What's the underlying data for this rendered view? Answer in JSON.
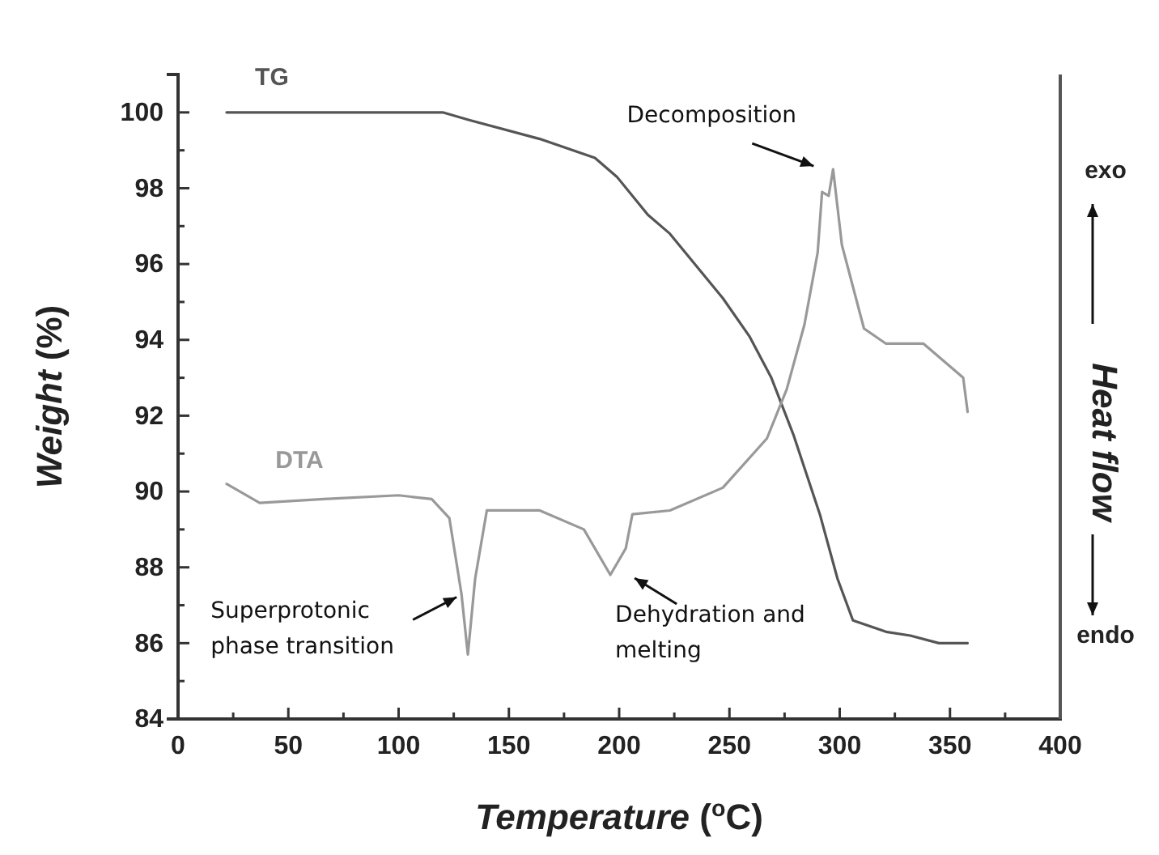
{
  "chart_data": {
    "type": "line",
    "xlabel": "Temperature ($^{o}$C)",
    "ylabel": "Weight (%)",
    "y2label": "Heat flow",
    "xlim": [
      0,
      400
    ],
    "xticks": [
      0,
      {
        "value": 25,
        "label": null
      },
      50,
      {
        "value": 75,
        "label": null
      },
      100,
      {
        "value": 125,
        "label": null
      },
      150,
      {
        "value": 175,
        "label": null
      },
      200,
      {
        "value": 225,
        "label": null
      },
      250,
      {
        "value": 275,
        "label": null
      },
      300,
      {
        "value": 325,
        "label": null
      },
      350,
      {
        "value": 375,
        "label": null
      },
      400
    ],
    "ylim": [
      84,
      101
    ],
    "yticks": [
      84,
      {
        "value": 85,
        "label": null
      },
      86,
      {
        "value": 87,
        "label": null
      },
      88,
      {
        "value": 89,
        "label": null
      },
      90,
      {
        "value": 91,
        "label": null
      },
      92,
      {
        "value": 93,
        "label": null
      },
      94,
      {
        "value": 95,
        "label": null
      },
      96,
      {
        "value": 97,
        "label": null
      },
      98,
      {
        "value": 99,
        "label": null
      },
      100
    ],
    "grid": false,
    "marker": "none",
    "line_style": "solid",
    "series": [
      {
        "name": "TG",
        "color": "#555555",
        "x": [
          22,
          60,
          100,
          120,
          132,
          164,
          189,
          199,
          213,
          223,
          247,
          259,
          269,
          279,
          291,
          299,
          306,
          321,
          332,
          345,
          358
        ],
        "values": [
          100,
          100,
          100,
          100,
          99.8,
          99.3,
          98.8,
          98.3,
          97.3,
          96.8,
          95.1,
          94.1,
          93.0,
          91.5,
          89.4,
          87.7,
          86.6,
          86.3,
          86.2,
          86.0,
          86.0
        ]
      },
      {
        "name": "DTA",
        "color": "#999999",
        "x": [
          22,
          37,
          66,
          100,
          115,
          123,
          128.5,
          131.4,
          134.7,
          140,
          164,
          184,
          196,
          203,
          206,
          223,
          247,
          267,
          276,
          284,
          290,
          292,
          295,
          297,
          301,
          311,
          321,
          338,
          350,
          356,
          358
        ],
        "values": [
          90.2,
          89.7,
          89.8,
          89.9,
          89.8,
          89.3,
          87.3,
          85.7,
          87.7,
          89.5,
          89.5,
          89.0,
          87.8,
          88.5,
          89.4,
          89.5,
          90.1,
          91.4,
          92.7,
          94.4,
          96.3,
          97.9,
          97.8,
          98.5,
          96.5,
          94.3,
          93.9,
          93.9,
          93.3,
          93.0,
          92.1
        ]
      }
    ],
    "annotations": [
      {
        "text": "Decomposition",
        "x": 297,
        "y": 98.5
      },
      {
        "text": "Superprotonic phase transition",
        "x": 128.5,
        "y": 87.3
      },
      {
        "text": "Dehydration and melting",
        "x": 196,
        "y": 87.8
      },
      "exo",
      "endo"
    ]
  }
}
